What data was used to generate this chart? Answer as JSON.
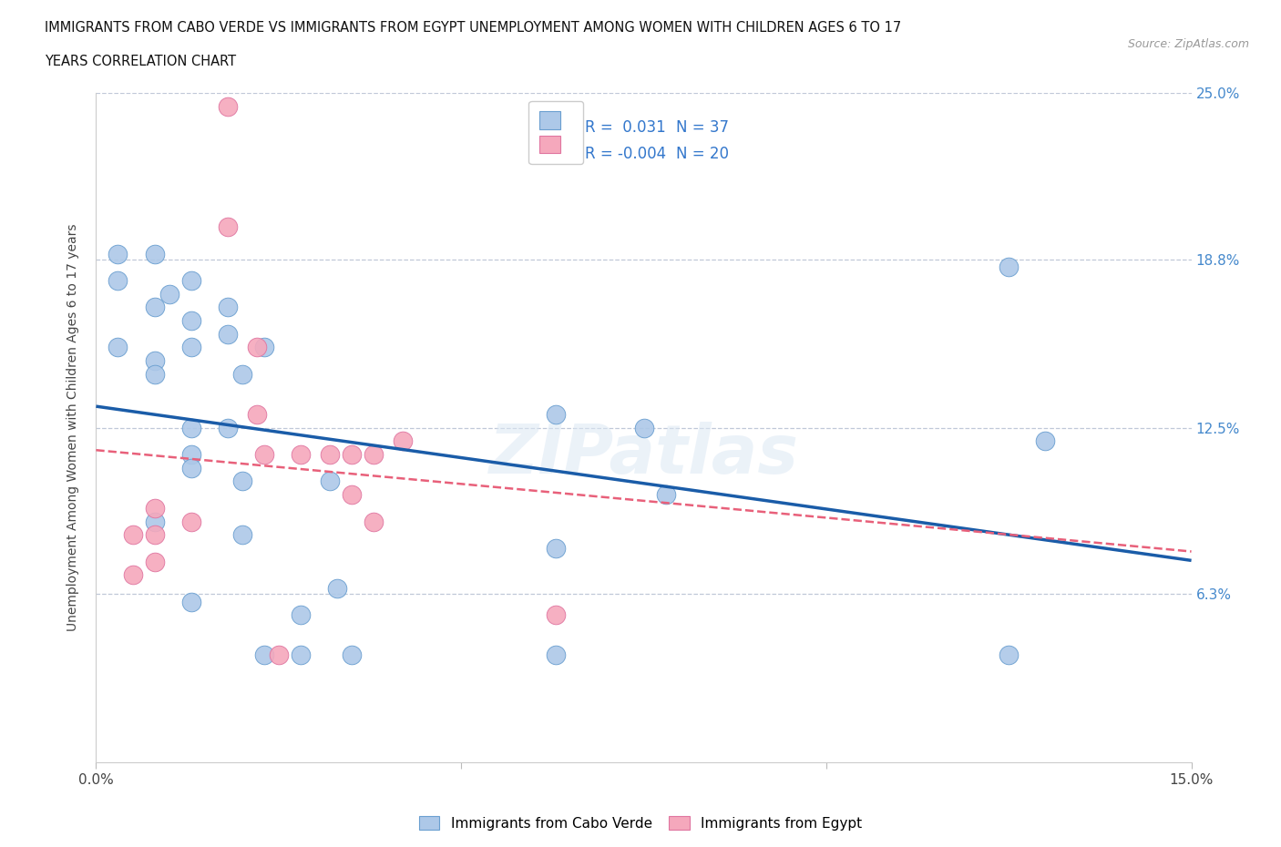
{
  "title_line1": "IMMIGRANTS FROM CABO VERDE VS IMMIGRANTS FROM EGYPT UNEMPLOYMENT AMONG WOMEN WITH CHILDREN AGES 6 TO 17",
  "title_line2": "YEARS CORRELATION CHART",
  "source": "Source: ZipAtlas.com",
  "ylabel": "Unemployment Among Women with Children Ages 6 to 17 years",
  "xlim": [
    0.0,
    0.15
  ],
  "ylim": [
    0.0,
    0.25
  ],
  "yticks": [
    0.0,
    0.063,
    0.125,
    0.188,
    0.25
  ],
  "ytick_labels": [
    "",
    "6.3%",
    "12.5%",
    "18.8%",
    "25.0%"
  ],
  "xticks": [
    0.0,
    0.05,
    0.1,
    0.15
  ],
  "xtick_labels": [
    "0.0%",
    "",
    "",
    "15.0%"
  ],
  "R_blue": 0.031,
  "N_blue": 37,
  "R_pink": -0.004,
  "N_pink": 20,
  "blue_color": "#adc8e8",
  "pink_color": "#f5a8bc",
  "blue_edge_color": "#6a9fd0",
  "pink_edge_color": "#e075a0",
  "blue_line_color": "#1a5ca8",
  "pink_line_color": "#e8607a",
  "watermark": "ZIPatlas",
  "cabo_verde_x": [
    0.003,
    0.008,
    0.003,
    0.01,
    0.013,
    0.008,
    0.013,
    0.013,
    0.003,
    0.008,
    0.008,
    0.013,
    0.018,
    0.018,
    0.013,
    0.018,
    0.023,
    0.02,
    0.013,
    0.008,
    0.013,
    0.02,
    0.02,
    0.028,
    0.028,
    0.032,
    0.033,
    0.035,
    0.063,
    0.063,
    0.063,
    0.075,
    0.078,
    0.125,
    0.125,
    0.13,
    0.023
  ],
  "cabo_verde_y": [
    0.19,
    0.19,
    0.18,
    0.175,
    0.18,
    0.17,
    0.165,
    0.155,
    0.155,
    0.15,
    0.145,
    0.125,
    0.17,
    0.16,
    0.115,
    0.125,
    0.155,
    0.145,
    0.11,
    0.09,
    0.06,
    0.105,
    0.085,
    0.055,
    0.04,
    0.105,
    0.065,
    0.04,
    0.13,
    0.08,
    0.04,
    0.125,
    0.1,
    0.185,
    0.04,
    0.12,
    0.04
  ],
  "egypt_x": [
    0.018,
    0.018,
    0.022,
    0.022,
    0.023,
    0.028,
    0.032,
    0.035,
    0.035,
    0.038,
    0.038,
    0.042,
    0.008,
    0.008,
    0.008,
    0.013,
    0.005,
    0.005,
    0.063,
    0.025
  ],
  "egypt_y": [
    0.245,
    0.2,
    0.155,
    0.13,
    0.115,
    0.115,
    0.115,
    0.115,
    0.1,
    0.09,
    0.115,
    0.12,
    0.095,
    0.085,
    0.075,
    0.09,
    0.085,
    0.07,
    0.055,
    0.04
  ]
}
